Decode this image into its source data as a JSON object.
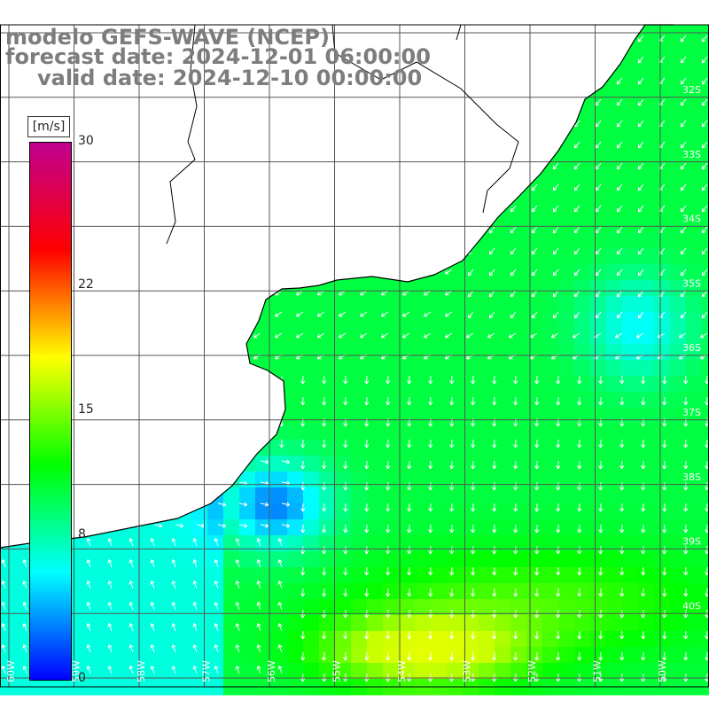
{
  "title": {
    "model": "modelo GEFS-WAVE (NCEP)",
    "forecast": "forecast date: 2024-12-01 06:00:00",
    "valid": "valid date: 2024-12-10 00:00:00"
  },
  "colorbar": {
    "unit": "[m/s]",
    "ticks": [
      {
        "label": "30",
        "value": 30
      },
      {
        "label": "22",
        "value": 22
      },
      {
        "label": "15",
        "value": 15
      },
      {
        "label": "8",
        "value": 8
      },
      {
        "label": "0",
        "value": 0
      }
    ],
    "range": [
      0,
      30
    ],
    "colors": [
      "#0000ff",
      "#00ffff",
      "#00ff00",
      "#ffff00",
      "#ff0000",
      "#c00090"
    ]
  },
  "map": {
    "type": "wind-speed-vector-field",
    "lon_labels": [
      "60W",
      "59W",
      "58W",
      "57W",
      "56W",
      "55W",
      "54W",
      "53W",
      "52W",
      "51W",
      "50W"
    ],
    "lat_labels": [
      "32S",
      "33S",
      "34S",
      "35S",
      "36S",
      "37S",
      "38S",
      "39S",
      "40S"
    ],
    "colors": {
      "land": "#ffffff",
      "coast": "#000000",
      "grid": "#555555",
      "arrow": "#ffffff"
    }
  }
}
